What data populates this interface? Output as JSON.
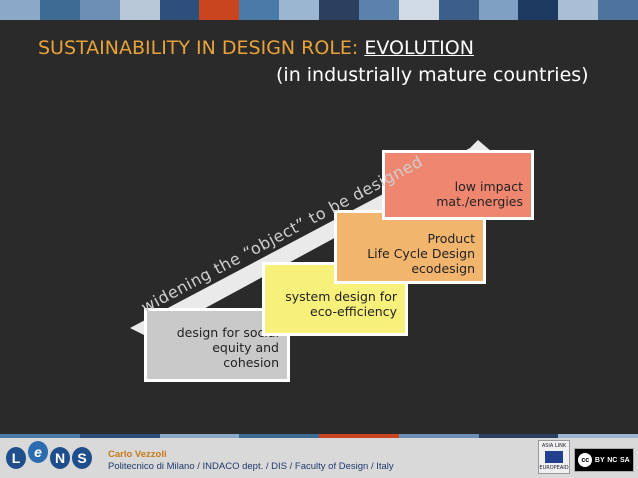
{
  "title": {
    "prefix": "SUSTAINABILITY IN DESIGN ROLE: ",
    "highlight": "EVOLUTION",
    "subtitle": "(in industrially mature countries)"
  },
  "diagonal_label": "widening the “object” to be designed",
  "boxes": {
    "social": {
      "lines": [
        "design for social",
        "equity and",
        "cohesion"
      ],
      "color": "#c9c9c9"
    },
    "system": {
      "lines": [
        "system design for",
        "eco-efficiency"
      ],
      "color": "#f7f07a"
    },
    "lca": {
      "lines": [
        "Product",
        "Life Cycle Design",
        "ecodesign"
      ],
      "color": "#f2b56e"
    },
    "impact": {
      "lines": [
        "low impact",
        "mat./energies"
      ],
      "color": "#ee8670"
    }
  },
  "footer": {
    "logo_letters": [
      "L",
      "e",
      "N",
      "S"
    ],
    "author": "Carlo Vezzoli",
    "affiliation": "Politecnico di Milano / INDACO dept. / DIS / Faculty of Design / Italy",
    "asia_link": {
      "title": "ASIA LINK",
      "caption": "EUROPEAID"
    },
    "license": {
      "cc": "cc",
      "by": "BY",
      "nc": "NC",
      "sa": "SA"
    }
  },
  "colors": {
    "title_accent": "#e8a33a",
    "background": "#2a2a2a",
    "arrow": "#ffffff"
  },
  "topbar_colors": [
    "#8aa8c8",
    "#3e6b94",
    "#6d8fb5",
    "#b8c8d8",
    "#2d4f7a",
    "#c8451f",
    "#4a7aa8",
    "#9ab6d0",
    "#2b3f5f",
    "#5a82ad",
    "#d0dbe6",
    "#3b5f8a",
    "#7fa0c2",
    "#1f3a60",
    "#a9bfd6",
    "#4e739c"
  ],
  "footer_strip_colors": [
    "#4a7aa8",
    "#2d4f7a",
    "#8aa8c8",
    "#3e6b94",
    "#c8451f",
    "#6d8fb5",
    "#2b3f5f",
    "#9ab6d0"
  ]
}
